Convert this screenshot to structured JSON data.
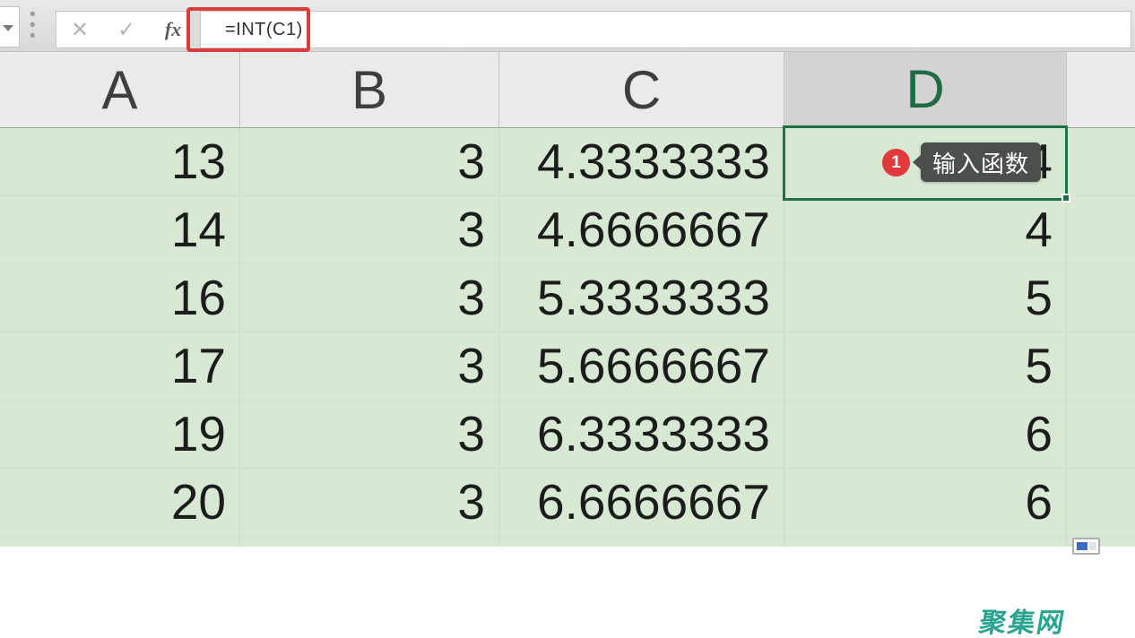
{
  "formula_bar": {
    "formula": "=INT(C1)",
    "cancel_icon": "✕",
    "confirm_icon": "✓",
    "fx_label": "fx"
  },
  "sheet": {
    "columns": [
      "A",
      "B",
      "C",
      "D"
    ],
    "selected_column": "D",
    "selected_cell": "D1",
    "rows": [
      [
        "13",
        "3",
        "4.3333333",
        "4"
      ],
      [
        "14",
        "3",
        "4.6666667",
        "4"
      ],
      [
        "16",
        "3",
        "5.3333333",
        "5"
      ],
      [
        "17",
        "3",
        "5.6666667",
        "5"
      ],
      [
        "19",
        "3",
        "6.3333333",
        "6"
      ],
      [
        "20",
        "3",
        "6.6666667",
        "6"
      ]
    ]
  },
  "annotation": {
    "badge": "1",
    "tooltip": "输入函数"
  },
  "watermark": "聚集网",
  "colors": {
    "cell_green": "#d7e9d3",
    "selection_green": "#1e7145",
    "highlight_red": "#e03a3a",
    "badge_red": "#e23a3a",
    "tooltip_bg": "#4b504c",
    "watermark_teal": "#29a48e"
  }
}
